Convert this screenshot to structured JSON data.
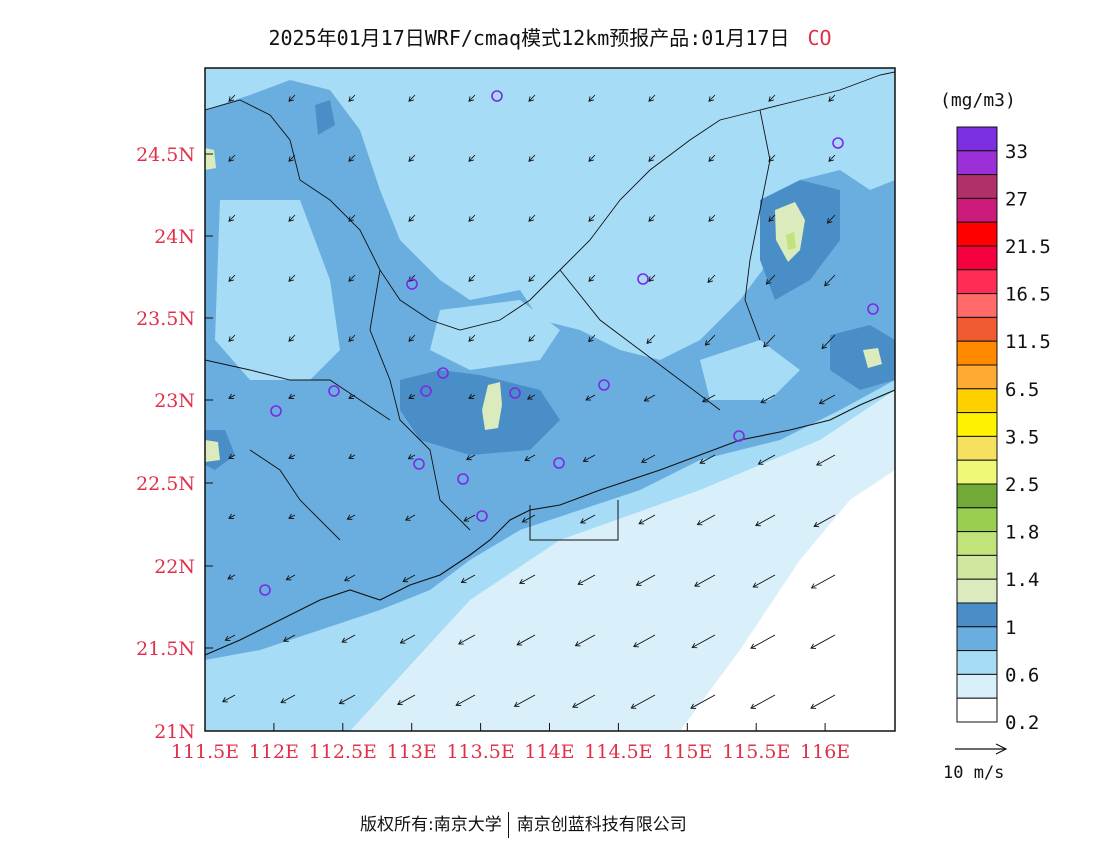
{
  "title": {
    "main": "2025年01月17日WRF/cmaq模式12km预报产品:01月17日",
    "species": "CO"
  },
  "unit_label": "(mg/m3)",
  "footer": {
    "left": "版权所有:南京大学",
    "right": "南京创蓝科技有限公司"
  },
  "map": {
    "lat_labels": [
      "24.5N",
      "24N",
      "23.5N",
      "23N",
      "22.5N",
      "22N",
      "21.5N",
      "21N"
    ],
    "lon_labels": [
      "111.5E",
      "112E",
      "112.5E",
      "113E",
      "113.5E",
      "114E",
      "114.5E",
      "115E",
      "115.5E",
      "116E"
    ],
    "label_color": "#e0304a"
  },
  "colorbar": {
    "colors": [
      "#7b2fe0",
      "#9b30d8",
      "#b0306a",
      "#cc1a7a",
      "#ff0000",
      "#f5003f",
      "#ff2d55",
      "#ff6a6a",
      "#f05a30",
      "#ff8a00",
      "#ffaa33",
      "#ffd000",
      "#fff200",
      "#f5e060",
      "#f0f878",
      "#72aa38",
      "#98cf50",
      "#c2e27a",
      "#cfe7a0",
      "#dbebbe",
      "#4a8ec8",
      "#6aaee0",
      "#a6dcf6",
      "#d9f0fb",
      "#ffffff"
    ],
    "labels": [
      "33",
      "27",
      "21.5",
      "16.5",
      "11.5",
      "6.5",
      "3.5",
      "2.5",
      "1.8",
      "1.4",
      "1",
      "0.6",
      "0.2"
    ]
  },
  "wind_reference": "10 m/s",
  "fill_colors": {
    "very_light": "#d9f0fb",
    "light": "#a6dcf6",
    "mid": "#6aaee0",
    "dark": "#4a8ec8",
    "pale_green": "#dbebbe",
    "green": "#c2e27a"
  },
  "station_marker_color": "#7a2ae6"
}
